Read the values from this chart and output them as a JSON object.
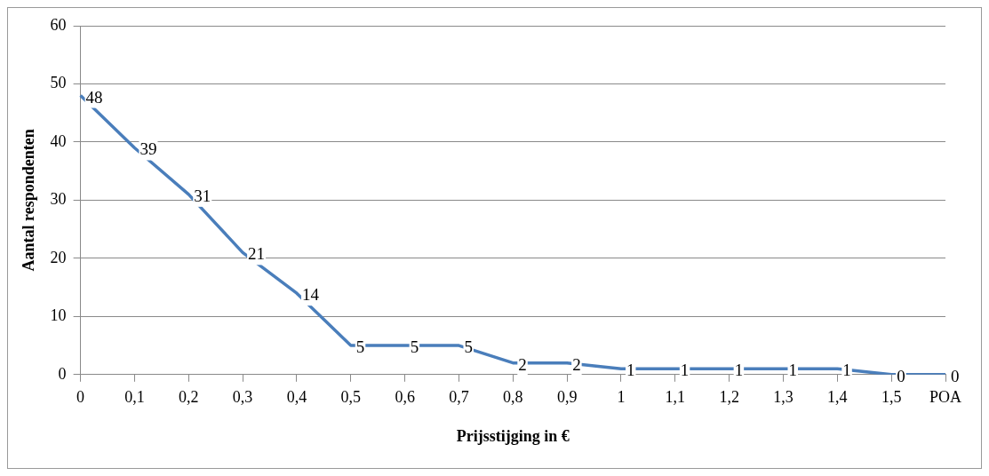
{
  "chart_data": {
    "type": "line",
    "xlabel": "Prijsstijging in €",
    "ylabel": "Aantal respondenten",
    "categories": [
      "0",
      "0,1",
      "0,2",
      "0,3",
      "0,4",
      "0,5",
      "0,6",
      "0,7",
      "0,8",
      "0,9",
      "1",
      "1,1",
      "1,2",
      "1,3",
      "1,4",
      "1,5",
      "POA"
    ],
    "series": [
      {
        "color": "#4a7ebb",
        "values": [
          48,
          39,
          31,
          21,
          14,
          5,
          5,
          5,
          2,
          2,
          1,
          1,
          1,
          1,
          1,
          0,
          0
        ]
      }
    ],
    "ylim": [
      0,
      60
    ],
    "yticks": [
      0,
      10,
      20,
      30,
      40,
      50,
      60
    ],
    "grid": "y",
    "legend": false,
    "marker": "none",
    "line_style": "solid",
    "data_labels": true
  }
}
